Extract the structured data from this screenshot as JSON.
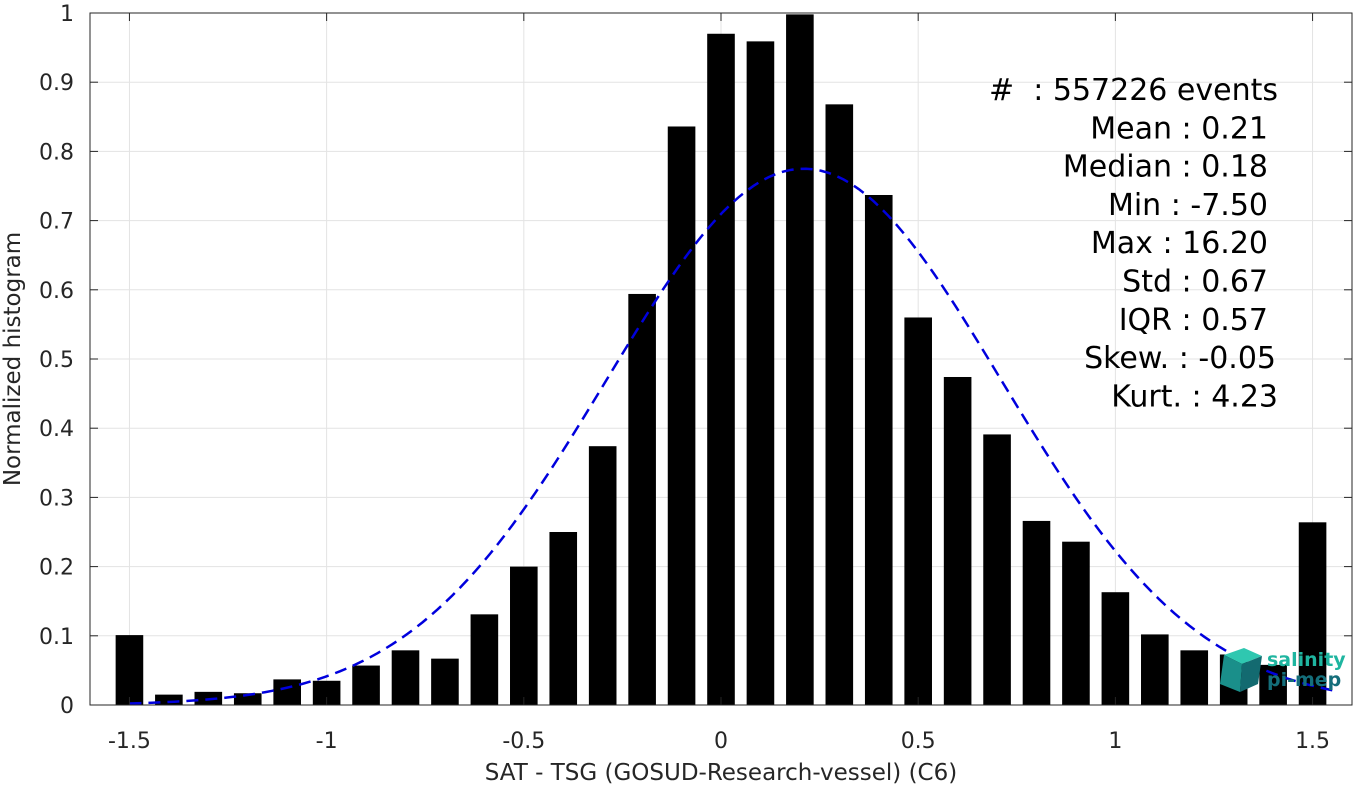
{
  "chart_data": {
    "type": "bar",
    "xlabel": "SAT - TSG (GOSUD-Research-vessel) (C6)",
    "ylabel": "Normalized histogram",
    "xlim": [
      -1.6,
      1.6
    ],
    "ylim": [
      0,
      1
    ],
    "grid": true,
    "x_ticks": [
      -1.5,
      -1,
      -0.5,
      0,
      0.5,
      1,
      1.5
    ],
    "x_tick_labels": [
      "-1.5",
      "-1",
      "-0.5",
      "0",
      "0.5",
      "1",
      "1.5"
    ],
    "y_ticks": [
      0,
      0.1,
      0.2,
      0.3,
      0.4,
      0.5,
      0.6,
      0.7,
      0.8,
      0.9,
      1
    ],
    "y_tick_labels": [
      "0",
      "0.1",
      "0.2",
      "0.3",
      "0.4",
      "0.5",
      "0.6",
      "0.7",
      "0.8",
      "0.9",
      "1"
    ],
    "bar_width": 0.07,
    "series": [
      {
        "x": [
          -1.5,
          -1.4,
          -1.3,
          -1.2,
          -1.1,
          -1.0,
          -0.9,
          -0.8,
          -0.7,
          -0.6,
          -0.5,
          -0.4,
          -0.3,
          -0.2,
          -0.1,
          0.0,
          0.1,
          0.2,
          0.3,
          0.4,
          0.5,
          0.6,
          0.7,
          0.8,
          0.9,
          1.0,
          1.1,
          1.2,
          1.3,
          1.4,
          1.5
        ],
        "values": [
          0.101,
          0.015,
          0.019,
          0.017,
          0.037,
          0.035,
          0.057,
          0.079,
          0.067,
          0.131,
          0.2,
          0.25,
          0.374,
          0.594,
          0.836,
          0.97,
          0.959,
          0.998,
          0.868,
          0.737,
          0.56,
          0.474,
          0.391,
          0.266,
          0.236,
          0.163,
          0.102,
          0.079,
          0.073,
          0.058,
          0.264
        ],
        "color": "#000000"
      }
    ],
    "fit_curve": {
      "style": "dashed",
      "color": "#0000dd",
      "mean": 0.21,
      "std": 0.5,
      "peak": 0.775,
      "x_range": [
        -1.5,
        1.55
      ]
    },
    "stats": [
      "#  : 557226 events",
      "Mean : 0.21",
      "Median : 0.18",
      "Min : -7.50",
      "Max : 16.20",
      "Std : 0.67",
      "IQR : 0.57",
      "Skew. : -0.05",
      "Kurt. : 4.23"
    ]
  },
  "logo": {
    "line1": "salinity",
    "line2": "pi-mep",
    "color1": "#1fb5a0",
    "color2": "#146e7a"
  }
}
